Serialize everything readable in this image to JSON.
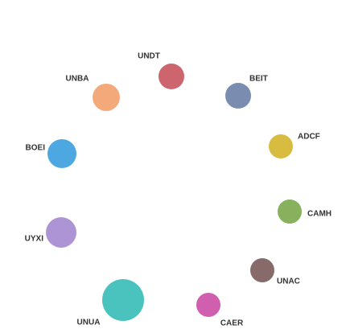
{
  "nodes": [
    {
      "label": "UNDT",
      "color": "#c8545e"
    },
    {
      "label": "BEIT",
      "color": "#6d7fa8"
    },
    {
      "label": "ADCF",
      "color": "#d4b52a"
    },
    {
      "label": "CAMH",
      "color": "#7aa84a"
    },
    {
      "label": "UNAC",
      "color": "#7a5a5a"
    },
    {
      "label": "CAER",
      "color": "#cc4ea6"
    },
    {
      "label": "UNUA",
      "color": "#36bcb8"
    },
    {
      "label": "UYXI",
      "color": "#a48ad0"
    },
    {
      "label": "BOEI",
      "color": "#3a9ede"
    },
    {
      "label": "UNBA",
      "color": "#f2a06a"
    }
  ]
}
